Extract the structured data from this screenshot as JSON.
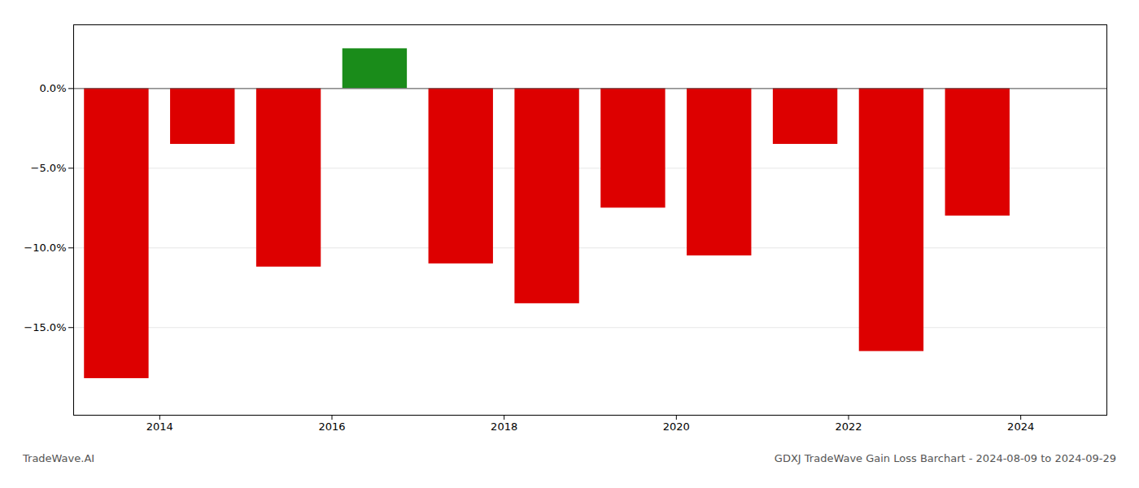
{
  "chart_data": {
    "type": "bar",
    "title": "GDXJ TradeWave Gain Loss Barchart - 2024-08-09 to 2024-09-29",
    "annotations": [
      "TradeWave.AI"
    ],
    "x": [
      2013.5,
      2014.5,
      2015.5,
      2016.5,
      2017.5,
      2018.5,
      2019.5,
      2020.5,
      2021.5,
      2022.5,
      2023.5
    ],
    "values": [
      -18.2,
      -3.5,
      -11.2,
      2.5,
      -11.0,
      -13.5,
      -7.5,
      -10.5,
      -3.5,
      -16.5,
      -8.0
    ],
    "colors": [
      "#dd0000",
      "#dd0000",
      "#dd0000",
      "#1a8c1a",
      "#dd0000",
      "#dd0000",
      "#dd0000",
      "#dd0000",
      "#dd0000",
      "#dd0000",
      "#dd0000"
    ],
    "xlim": [
      2013.0,
      2025.0
    ],
    "xticks": [
      2014,
      2016,
      2018,
      2020,
      2022,
      2024
    ],
    "ylim": [
      -20.5,
      4.0
    ],
    "yticks": [
      {
        "value": 0,
        "label": "0.0%"
      },
      {
        "value": -5,
        "label": "−5.0%"
      },
      {
        "value": -10,
        "label": "−10.0%"
      },
      {
        "value": -15,
        "label": "−15.0%"
      }
    ],
    "grid": true
  }
}
